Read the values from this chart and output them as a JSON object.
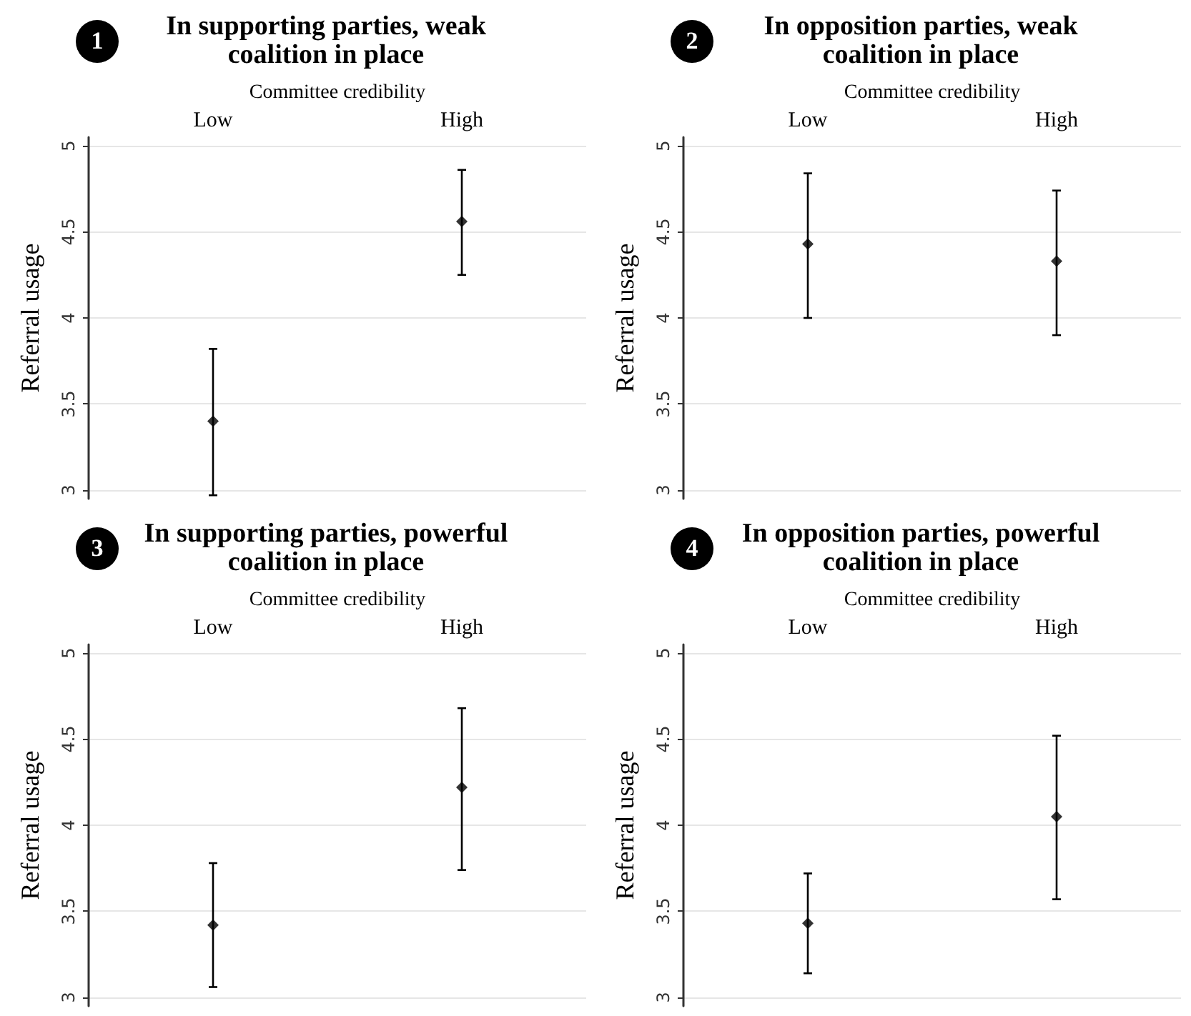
{
  "chart_data": [
    {
      "type": "scatter",
      "title": "In supporting parties, weak coalition in place",
      "annotations": [
        "1"
      ],
      "xlabel": "Committee credibility",
      "ylabel": "Referral usage",
      "categories": [
        "Low",
        "High"
      ],
      "values": [
        3.4,
        4.56
      ],
      "errors": [
        [
          2.97,
          3.82
        ],
        [
          4.25,
          4.86
        ]
      ],
      "color": "#000000",
      "ylim": [
        2.95,
        5.05
      ],
      "yticks": [
        3,
        3.5,
        4,
        4.5,
        5
      ],
      "grid": "y",
      "marker": "diamond"
    },
    {
      "type": "scatter",
      "title": "In opposition parties, weak coalition in place",
      "annotations": [
        "2"
      ],
      "xlabel": "Committee credibility",
      "ylabel": "Referral usage",
      "categories": [
        "Low",
        "High"
      ],
      "values": [
        4.43,
        4.33
      ],
      "errors": [
        [
          4.0,
          4.84
        ],
        [
          3.9,
          4.74
        ]
      ],
      "color": "#000000",
      "ylim": [
        2.95,
        5.05
      ],
      "yticks": [
        3,
        3.5,
        4,
        4.5,
        5
      ],
      "grid": "y",
      "marker": "diamond"
    },
    {
      "type": "scatter",
      "title": "In supporting parties, powerful coalition in place",
      "annotations": [
        "3"
      ],
      "xlabel": "Committee credibility",
      "ylabel": "Referral usage",
      "categories": [
        "Low",
        "High"
      ],
      "values": [
        3.42,
        4.22
      ],
      "errors": [
        [
          3.06,
          3.78
        ],
        [
          3.74,
          4.68
        ]
      ],
      "color": "#000000",
      "ylim": [
        2.95,
        5.05
      ],
      "yticks": [
        3,
        3.5,
        4,
        4.5,
        5
      ],
      "grid": "y",
      "marker": "diamond"
    },
    {
      "type": "scatter",
      "title": "In opposition parties, powerful coalition in place",
      "annotations": [
        "4"
      ],
      "xlabel": "Committee credibility",
      "ylabel": "Referral usage",
      "categories": [
        "Low",
        "High"
      ],
      "values": [
        3.43,
        4.05
      ],
      "errors": [
        [
          3.14,
          3.72
        ],
        [
          3.57,
          4.52
        ]
      ],
      "color": "#000000",
      "ylim": [
        2.95,
        5.05
      ],
      "yticks": [
        3,
        3.5,
        4,
        4.5,
        5
      ],
      "grid": "y",
      "marker": "diamond"
    }
  ]
}
